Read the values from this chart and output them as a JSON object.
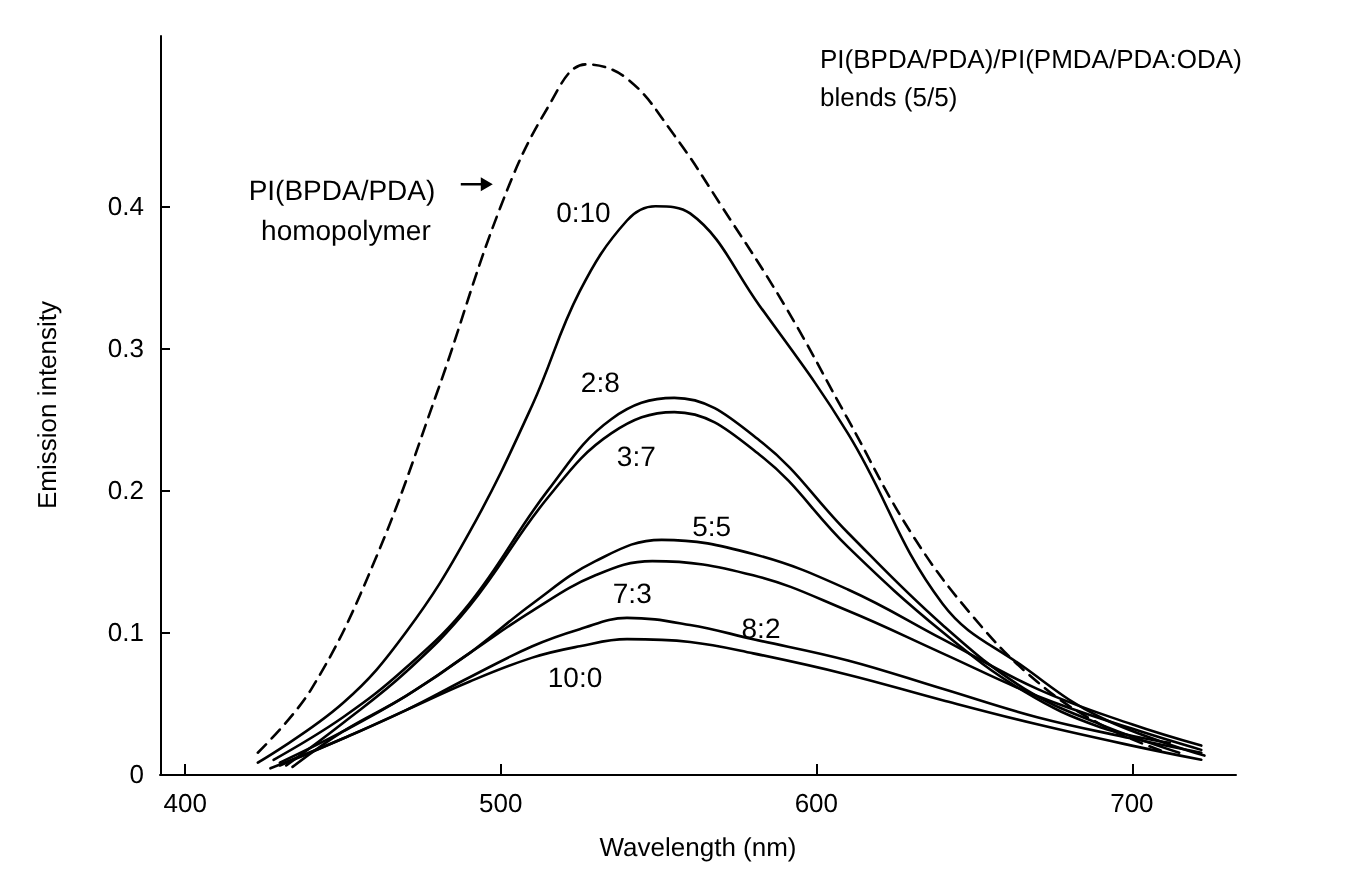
{
  "chart_data": {
    "type": "line",
    "xlabel": "Wavelength (nm)",
    "ylabel": "Emission intensity",
    "xlim": [
      392,
      733
    ],
    "ylim": [
      0,
      0.52
    ],
    "xticks": [
      400,
      500,
      600,
      700
    ],
    "yticks": [
      0,
      0.1,
      0.2,
      0.3,
      0.4
    ],
    "grid": false,
    "marker": "none",
    "line_style": "solid",
    "annotations": [
      "PI(BPDA/PDA)/PI(PMDA/PDA:ODA) blends (5/5)"
    ],
    "series": [
      {
        "name": "PI(BPDA/PDA) homopolymer",
        "color": "#000000",
        "line_style": "dashed",
        "x": [
          423,
          440,
          460,
          480,
          500,
          515,
          527,
          540,
          555,
          570,
          590,
          610,
          630,
          650,
          670,
          690,
          711
        ],
        "values": [
          0.015,
          0.06,
          0.15,
          0.27,
          0.4,
          0.47,
          0.5,
          0.49,
          0.45,
          0.4,
          0.33,
          0.25,
          0.17,
          0.11,
          0.065,
          0.035,
          0.015
        ]
      },
      {
        "name": "0:10",
        "color": "#000000",
        "x": [
          423,
          450,
          470,
          490,
          510,
          525,
          540,
          549,
          560,
          582,
          610,
          640,
          666,
          690,
          723
        ],
        "values": [
          0.008,
          0.05,
          0.1,
          0.17,
          0.26,
          0.34,
          0.39,
          0.4,
          0.395,
          0.33,
          0.24,
          0.12,
          0.075,
          0.04,
          0.013
        ]
      },
      {
        "name": "2:8",
        "color": "#000000",
        "x": [
          428,
          450,
          470,
          490,
          515,
          535,
          555,
          582,
          610,
          640,
          666,
          690,
          715
        ],
        "values": [
          0.01,
          0.04,
          0.075,
          0.12,
          0.2,
          0.25,
          0.265,
          0.235,
          0.17,
          0.105,
          0.06,
          0.035,
          0.015
        ]
      },
      {
        "name": "3:7",
        "color": "#000000",
        "x": [
          432,
          450,
          470,
          490,
          515,
          535,
          555,
          582,
          610,
          640,
          666,
          690,
          712
        ],
        "values": [
          0.006,
          0.036,
          0.072,
          0.118,
          0.195,
          0.24,
          0.255,
          0.225,
          0.16,
          0.1,
          0.058,
          0.033,
          0.022
        ]
      },
      {
        "name": "5:5",
        "color": "#000000",
        "x": [
          430,
          450,
          470,
          490,
          510,
          530,
          551,
          580,
          610,
          640,
          670,
          700,
          722
        ],
        "values": [
          0.008,
          0.03,
          0.055,
          0.085,
          0.12,
          0.15,
          0.165,
          0.155,
          0.13,
          0.095,
          0.06,
          0.035,
          0.02
        ]
      },
      {
        "name": "7:3",
        "color": "#000000",
        "x": [
          434,
          450,
          470,
          490,
          510,
          530,
          548,
          580,
          610,
          640,
          670,
          700,
          722
        ],
        "values": [
          0.005,
          0.03,
          0.055,
          0.085,
          0.115,
          0.14,
          0.15,
          0.14,
          0.115,
          0.085,
          0.055,
          0.032,
          0.017
        ]
      },
      {
        "name": "8:2",
        "color": "#000000",
        "x": [
          430,
          450,
          470,
          490,
          510,
          525,
          540,
          560,
          580,
          610,
          640,
          670,
          700,
          722
        ],
        "values": [
          0.006,
          0.025,
          0.045,
          0.068,
          0.09,
          0.102,
          0.11,
          0.105,
          0.095,
          0.08,
          0.06,
          0.04,
          0.025,
          0.015
        ]
      },
      {
        "name": "10:0",
        "color": "#000000",
        "x": [
          427,
          450,
          470,
          490,
          510,
          525,
          540,
          560,
          580,
          610,
          640,
          670,
          700,
          722
        ],
        "values": [
          0.004,
          0.025,
          0.045,
          0.065,
          0.082,
          0.09,
          0.095,
          0.093,
          0.085,
          0.07,
          0.052,
          0.035,
          0.02,
          0.01
        ]
      }
    ]
  }
}
